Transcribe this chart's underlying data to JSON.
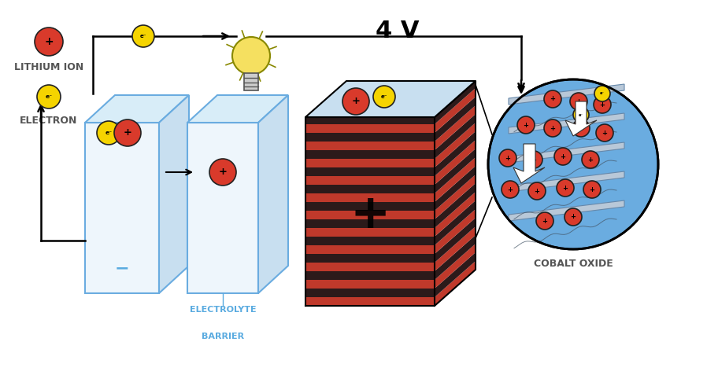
{
  "bg_color": "#ffffff",
  "red_ion_color": "#d93a2b",
  "red_ion_edge": "#222222",
  "yellow_electron_color": "#f5d400",
  "yellow_electron_edge": "#222222",
  "text_color": "#555555",
  "blue_fill": "#a8c8e8",
  "battery_stripe_red": "#c0392b",
  "battery_stripe_dark": "#2c1a1a",
  "battery_top_blue": "#c8dff0",
  "cobalt_blue": "#6aace0",
  "label_lithium_ion": "LITHIUM ION",
  "label_electron": "ELECTRON",
  "label_4v": "4 V",
  "label_electrolyte": "ELECTROLYTE",
  "label_barrier": "BARRIER",
  "label_cobalt": "COBALT OXIDE",
  "font_size_labels": 9,
  "font_size_4v": 18,
  "box_edge_color": "#6aace0",
  "box_top_color": "#d8edf8",
  "box_right_color": "#c8dff0",
  "box_front_color": "#eef6fc"
}
